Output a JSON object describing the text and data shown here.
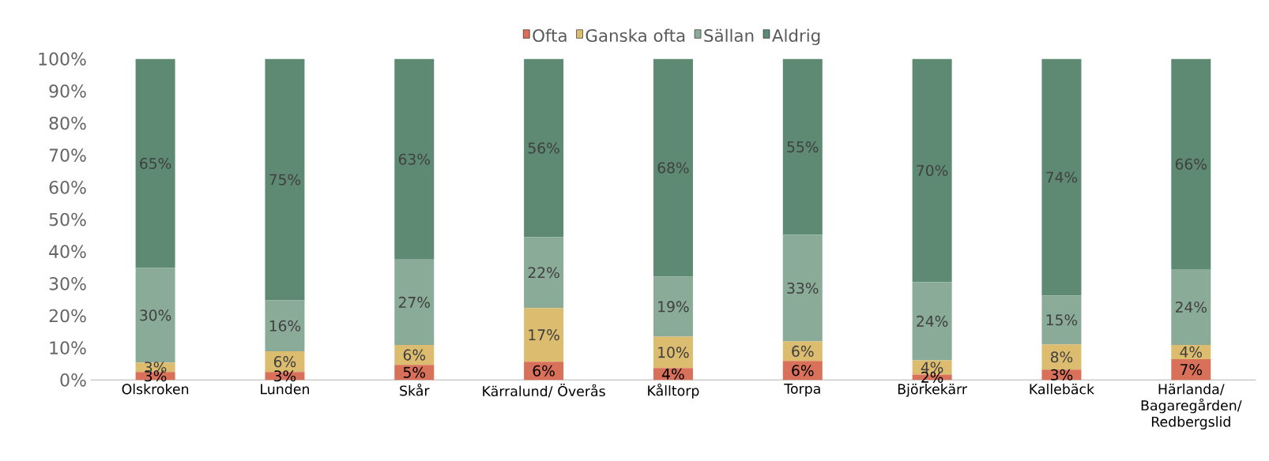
{
  "chart_data": {
    "type": "bar",
    "stacked": true,
    "categories": [
      "Olskroken",
      "Lunden",
      "Skår",
      "Kärralund/ Överås",
      "Kålltorp",
      "Torpa",
      "Björkekärr",
      "Kallebäck",
      "Härlanda/ Bagaregården/ Redbergslid"
    ],
    "series": [
      {
        "name": "Ofta",
        "color": "#d9705a",
        "values": [
          2.5,
          2.5,
          4.7,
          5.7,
          3.7,
          5.9,
          1.7,
          3.2,
          6.5
        ],
        "value_labels": [
          "3%",
          "3%",
          "5%",
          "6%",
          "4%",
          "6%",
          "2%",
          "3%",
          "7%"
        ]
      },
      {
        "name": "Ganska ofta",
        "color": "#dcbc6f",
        "values": [
          2.9,
          6.4,
          6.2,
          16.7,
          9.8,
          6.1,
          4.4,
          7.9,
          4.4
        ],
        "value_labels": [
          "3%",
          "6%",
          "6%",
          "17%",
          "10%",
          "6%",
          "4%",
          "8%",
          "4%"
        ]
      },
      {
        "name": "Sällan",
        "color": "#8aab98",
        "values": [
          29.5,
          15.9,
          26.6,
          22.1,
          18.7,
          33.2,
          24.4,
          15.2,
          23.6
        ],
        "value_labels": [
          "30%",
          "16%",
          "27%",
          "22%",
          "19%",
          "33%",
          "24%",
          "15%",
          "24%"
        ]
      },
      {
        "name": "Aldrig",
        "color": "#5e8a74",
        "values": [
          65.1,
          75.2,
          62.5,
          55.5,
          67.8,
          54.8,
          69.5,
          73.7,
          65.5
        ],
        "value_labels": [
          "65%",
          "75%",
          "63%",
          "56%",
          "68%",
          "55%",
          "70%",
          "74%",
          "66%"
        ]
      }
    ],
    "ylim": [
      0,
      100
    ],
    "yticks": [
      {
        "value": 0,
        "label": "0%"
      },
      {
        "value": 10,
        "label": "10%"
      },
      {
        "value": 20,
        "label": "20%"
      },
      {
        "value": 30,
        "label": "30%"
      },
      {
        "value": 40,
        "label": "40%"
      },
      {
        "value": 50,
        "label": "50%"
      },
      {
        "value": 60,
        "label": "60%"
      },
      {
        "value": 70,
        "label": "70%"
      },
      {
        "value": 80,
        "label": "80%"
      },
      {
        "value": 90,
        "label": "90%"
      },
      {
        "value": 100,
        "label": "100%"
      }
    ],
    "grid": false,
    "legend": "top"
  }
}
